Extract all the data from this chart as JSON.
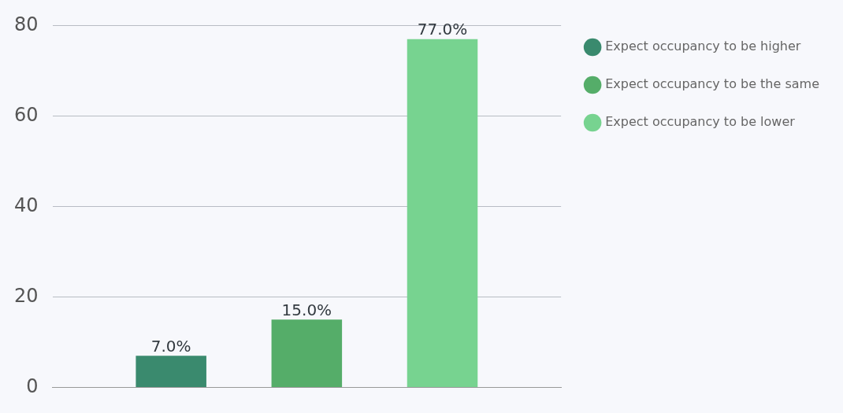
{
  "chart_data": {
    "type": "bar",
    "categories": [
      null
    ],
    "series": [
      {
        "name": "Expect occupancy to be higher",
        "color": "#3a8a6e",
        "values": [
          7
        ],
        "value_labels": [
          "7.0%"
        ]
      },
      {
        "name": "Expect occupancy to be the same",
        "color": "#55ad69",
        "values": [
          15
        ],
        "value_labels": [
          "15.0%"
        ]
      },
      {
        "name": "Expect occupancy to be lower",
        "color": "#77d390",
        "values": [
          77
        ],
        "value_labels": [
          "77.0%"
        ]
      }
    ],
    "ylim": [
      0,
      80
    ],
    "yticks": [
      0,
      20,
      40,
      60,
      80
    ],
    "grid": "y",
    "legend": "top right",
    "tick_labels": "y"
  }
}
